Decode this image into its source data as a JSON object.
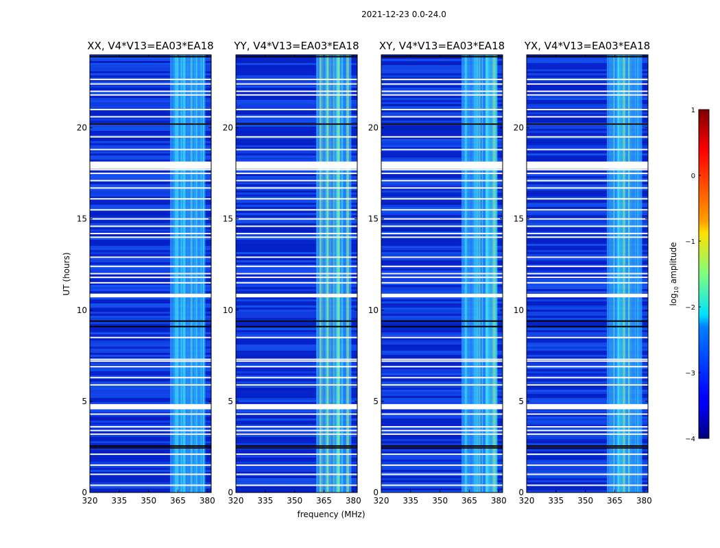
{
  "figure": {
    "suptitle": "2021-12-23 0.0-24.0"
  },
  "chart_data": {
    "type": "heatmap",
    "title": "2021-12-23 0.0-24.0",
    "panels": [
      {
        "name": "XX",
        "title": "XX, V4*V13=EA03*EA18"
      },
      {
        "name": "YY",
        "title": "YY, V4*V13=EA03*EA18"
      },
      {
        "name": "XY",
        "title": "XY, V4*V13=EA03*EA18"
      },
      {
        "name": "YX",
        "title": "YX, V4*V13=EA03*EA18"
      }
    ],
    "xlabel": "frequency (MHz)",
    "ylabel": "UT (hours)",
    "xlim": [
      320,
      382
    ],
    "ylim": [
      0,
      24
    ],
    "xticks": [
      320,
      335,
      350,
      365,
      380
    ],
    "xtick_labels": [
      "320",
      "335",
      "350",
      "365",
      "380"
    ],
    "yticks": [
      0,
      5,
      10,
      15,
      20
    ],
    "ytick_labels": [
      "0",
      "5",
      "10",
      "15",
      "20"
    ],
    "band": {
      "start_mhz": 361,
      "end_mhz": 379,
      "description": "elevated-amplitude band"
    },
    "flagged_hours": [
      0.4,
      1.0,
      1.5,
      2.1,
      3.2,
      3.4,
      3.6,
      4.3,
      4.6,
      4.75,
      5.9,
      6.3,
      6.9,
      7.2,
      7.3,
      8.5,
      10.75,
      10.85,
      11.5,
      11.8,
      12.0,
      12.4,
      12.9,
      14.0,
      14.2,
      14.6,
      15.0,
      15.5,
      16.1,
      16.7,
      17.1,
      17.5,
      17.7,
      17.85,
      18.0,
      18.1,
      18.8,
      19.5,
      20.2,
      20.6,
      21.0,
      21.8,
      22.0,
      22.4,
      22.65
    ],
    "dark_flag_hours": [
      2.45,
      2.55,
      9.1,
      9.4,
      20.2,
      23.9
    ],
    "colorbar": {
      "label": "log10 amplitude",
      "label_main": "log",
      "label_sub": "10",
      "label_rest": " amplitude",
      "range": [
        -4,
        1
      ],
      "ticks": [
        1,
        0,
        -1,
        -2,
        -3,
        -4
      ],
      "tick_labels": [
        "1",
        "0",
        "−1",
        "−2",
        "−3",
        "−4"
      ],
      "colormap": "jet"
    },
    "colors": {
      "background": "#0a2bd6",
      "noise_low": "#0018b8",
      "noise_high": "#1e6cff",
      "band_low": "#2a9bff",
      "band_mid": "#3ce0ee",
      "band_high": "#a8f07a",
      "flag_white": "#ffffff",
      "flag_dark": "#000000"
    }
  }
}
